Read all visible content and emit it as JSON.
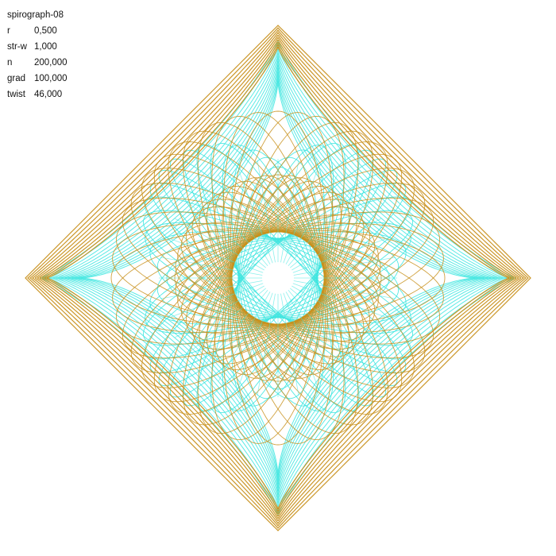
{
  "title": "spirograph-08",
  "params": [
    {
      "key": "r",
      "value": "0,500"
    },
    {
      "key": "str-w",
      "value": "1,000"
    },
    {
      "key": "n",
      "value": "200,000"
    },
    {
      "key": "grad",
      "value": "100,000"
    },
    {
      "key": "twist",
      "value": "46,000"
    }
  ],
  "colors": {
    "background": "#ffffff",
    "primary_stroke": "#c8901c",
    "secondary_stroke": "#40e6e0",
    "text": "#111111"
  }
}
